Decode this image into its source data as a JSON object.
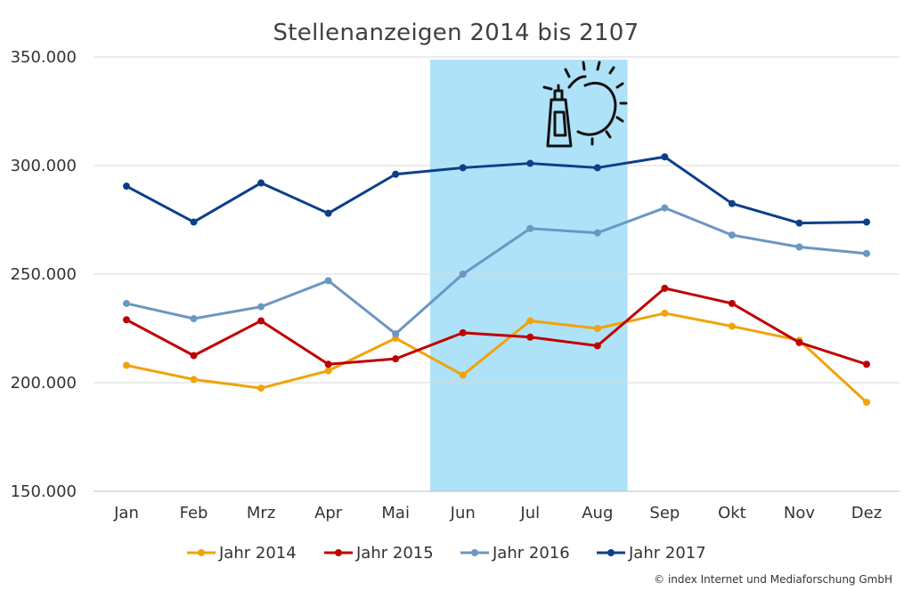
{
  "credit": "© index Internet und Mediaforschung GmbH",
  "chart_data": {
    "type": "line",
    "title": "Stellenanzeigen 2014 bis 2107",
    "xlabel": "",
    "ylabel": "",
    "categories": [
      "Jan",
      "Feb",
      "Mrz",
      "Apr",
      "Mai",
      "Jun",
      "Jul",
      "Aug",
      "Sep",
      "Okt",
      "Nov",
      "Dez"
    ],
    "y_ticks": [
      "150.000",
      "200.000",
      "250.000",
      "300.000",
      "350.000"
    ],
    "ylim": [
      150000,
      350000
    ],
    "grid": true,
    "legend_position": "bottom",
    "highlight": {
      "from": "Jun",
      "to": "Aug",
      "color": "#aee2f8",
      "icon": "sun-and-sunscreen-icon"
    },
    "series": [
      {
        "name": "Jahr 2014",
        "color": "#f0a30a",
        "values": [
          208000,
          201500,
          197500,
          205500,
          220500,
          203500,
          228500,
          225000,
          232000,
          226000,
          219500,
          191000
        ]
      },
      {
        "name": "Jahr 2015",
        "color": "#c00000",
        "values": [
          229000,
          212500,
          228500,
          208500,
          211000,
          223000,
          221000,
          217000,
          243500,
          236500,
          218500,
          208500
        ]
      },
      {
        "name": "Jahr 2016",
        "color": "#6b97c1",
        "values": [
          236500,
          229500,
          235000,
          247000,
          222500,
          250000,
          271000,
          269000,
          280500,
          268000,
          262500,
          259500
        ]
      },
      {
        "name": "Jahr 2017",
        "color": "#0c3f8a",
        "values": [
          290500,
          274000,
          292000,
          278000,
          296000,
          299000,
          301000,
          299000,
          304000,
          282500,
          273500,
          274000
        ]
      }
    ]
  }
}
